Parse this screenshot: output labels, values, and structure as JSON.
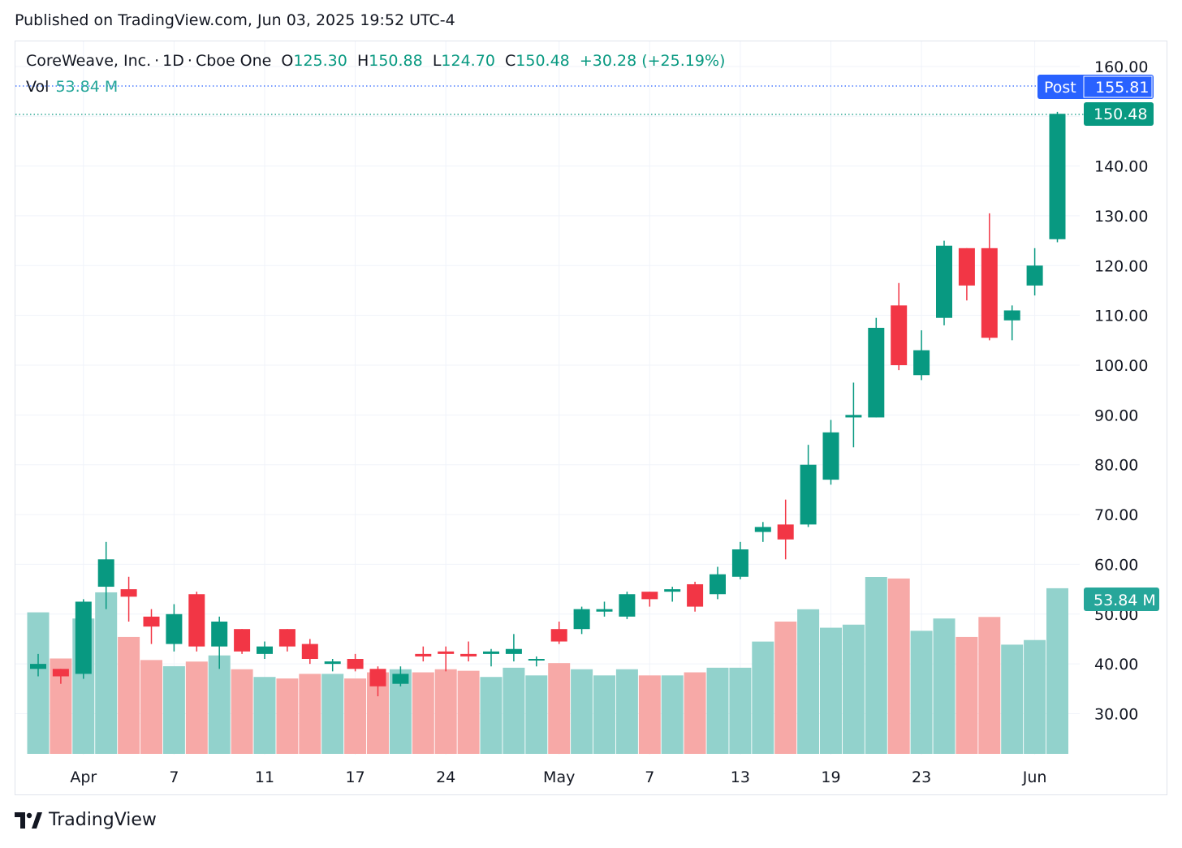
{
  "published": "Published on TradingView.com, Jun 03, 2025 19:52 UTC-4",
  "legend": {
    "symbol": "CoreWeave, Inc.",
    "interval": "1D",
    "exchange": "Cboe One",
    "open_label": "O",
    "open": "125.30",
    "high_label": "H",
    "high": "150.88",
    "low_label": "L",
    "low": "124.70",
    "close_label": "C",
    "close": "150.48",
    "change": "+30.28 (+25.19%)",
    "vol_label": "Vol",
    "vol_value": "53.84 M"
  },
  "tags": {
    "post_label": "Post",
    "post_price": "155.81",
    "last_price": "150.48",
    "volume_value": "53.84 M"
  },
  "footer": {
    "brand": "TradingView"
  },
  "colors": {
    "up": "#089981",
    "down": "#f23645",
    "vol_up": "#92d2cc",
    "vol_down": "#f7a9a7",
    "post": "#2962ff"
  },
  "chart_data": {
    "type": "candlestick",
    "y_axis": {
      "ticks": [
        30,
        40,
        50,
        60,
        70,
        80,
        90,
        100,
        110,
        120,
        130,
        140,
        160
      ],
      "tick_labels": [
        "30.00",
        "40.00",
        "50.00",
        "60.00",
        "70.00",
        "80.00",
        "90.00",
        "100.00",
        "110.00",
        "120.00",
        "130.00",
        "140.00",
        "160.00"
      ],
      "range": [
        22,
        163
      ]
    },
    "x_axis": {
      "tick_labels": [
        {
          "label": "Apr",
          "index": 2
        },
        {
          "label": "7",
          "index": 6
        },
        {
          "label": "11",
          "index": 10
        },
        {
          "label": "17",
          "index": 14
        },
        {
          "label": "24",
          "index": 18
        },
        {
          "label": "May",
          "index": 23
        },
        {
          "label": "7",
          "index": 27
        },
        {
          "label": "13",
          "index": 31
        },
        {
          "label": "19",
          "index": 35
        },
        {
          "label": "23",
          "index": 39
        },
        {
          "label": "Jun",
          "index": 44
        }
      ]
    },
    "volume_scale_max": 57.5,
    "candles": [
      {
        "o": 39.0,
        "h": 42.0,
        "l": 37.5,
        "c": 40.0,
        "v": 46
      },
      {
        "o": 39.0,
        "h": 39.0,
        "l": 36.0,
        "c": 37.5,
        "v": 31
      },
      {
        "o": 38.0,
        "h": 53.0,
        "l": 37.0,
        "c": 52.5,
        "v": 44
      },
      {
        "o": 55.5,
        "h": 64.5,
        "l": 51.0,
        "c": 61.0,
        "v": 52.5
      },
      {
        "o": 55.0,
        "h": 57.5,
        "l": 48.5,
        "c": 53.5,
        "v": 38
      },
      {
        "o": 49.5,
        "h": 51.0,
        "l": 44.0,
        "c": 47.5,
        "v": 30.5
      },
      {
        "o": 44.0,
        "h": 52.0,
        "l": 42.5,
        "c": 50.0,
        "v": 28.5
      },
      {
        "o": 54.0,
        "h": 54.5,
        "l": 42.5,
        "c": 43.5,
        "v": 30
      },
      {
        "o": 43.5,
        "h": 49.5,
        "l": 39.0,
        "c": 48.5,
        "v": 32
      },
      {
        "o": 47.0,
        "h": 47.0,
        "l": 42.0,
        "c": 42.5,
        "v": 27.5
      },
      {
        "o": 42.0,
        "h": 44.5,
        "l": 41.0,
        "c": 43.5,
        "v": 25
      },
      {
        "o": 47.0,
        "h": 47.0,
        "l": 42.5,
        "c": 43.5,
        "v": 24.5
      },
      {
        "o": 44.0,
        "h": 45.0,
        "l": 40.0,
        "c": 41.0,
        "v": 26
      },
      {
        "o": 40.0,
        "h": 41.0,
        "l": 38.5,
        "c": 40.5,
        "v": 26
      },
      {
        "o": 41.0,
        "h": 42.0,
        "l": 38.5,
        "c": 39.0,
        "v": 24.5
      },
      {
        "o": 39.0,
        "h": 39.5,
        "l": 33.5,
        "c": 35.5,
        "v": 26.5
      },
      {
        "o": 36.0,
        "h": 39.5,
        "l": 35.5,
        "c": 38.0,
        "v": 27.5
      },
      {
        "o": 42.0,
        "h": 43.5,
        "l": 40.5,
        "c": 41.5,
        "v": 26.5
      },
      {
        "o": 42.5,
        "h": 43.5,
        "l": 38.5,
        "c": 42.0,
        "v": 27.5
      },
      {
        "o": 42.0,
        "h": 44.5,
        "l": 40.5,
        "c": 41.5,
        "v": 27
      },
      {
        "o": 42.0,
        "h": 43.0,
        "l": 39.5,
        "c": 42.5,
        "v": 25
      },
      {
        "o": 42.0,
        "h": 46.0,
        "l": 40.5,
        "c": 43.0,
        "v": 28
      },
      {
        "o": 41.0,
        "h": 41.5,
        "l": 39.5,
        "c": 41.0,
        "v": 25.5
      },
      {
        "o": 47.0,
        "h": 48.5,
        "l": 44.0,
        "c": 44.5,
        "v": 29.5
      },
      {
        "o": 47.0,
        "h": 51.5,
        "l": 46.0,
        "c": 51.0,
        "v": 27.5
      },
      {
        "o": 50.5,
        "h": 52.5,
        "l": 49.5,
        "c": 51.0,
        "v": 25.5
      },
      {
        "o": 49.5,
        "h": 54.5,
        "l": 49.0,
        "c": 54.0,
        "v": 27.5
      },
      {
        "o": 54.5,
        "h": 54.5,
        "l": 51.5,
        "c": 53.0,
        "v": 25.5
      },
      {
        "o": 54.5,
        "h": 55.5,
        "l": 52.5,
        "c": 55.0,
        "v": 25.5
      },
      {
        "o": 56.0,
        "h": 56.5,
        "l": 50.5,
        "c": 51.5,
        "v": 26.5
      },
      {
        "o": 54.0,
        "h": 59.5,
        "l": 53.0,
        "c": 58.0,
        "v": 28
      },
      {
        "o": 57.5,
        "h": 64.5,
        "l": 57.0,
        "c": 63.0,
        "v": 28
      },
      {
        "o": 66.5,
        "h": 68.5,
        "l": 64.5,
        "c": 67.5,
        "v": 36.5
      },
      {
        "o": 68.0,
        "h": 73.0,
        "l": 61.0,
        "c": 65.0,
        "v": 43
      },
      {
        "o": 68.0,
        "h": 84.0,
        "l": 67.5,
        "c": 80.0,
        "v": 47
      },
      {
        "o": 77.0,
        "h": 89.0,
        "l": 76.0,
        "c": 86.5,
        "v": 41
      },
      {
        "o": 89.5,
        "h": 96.5,
        "l": 83.5,
        "c": 90.0,
        "v": 42
      },
      {
        "o": 89.5,
        "h": 109.5,
        "l": 89.5,
        "c": 107.5,
        "v": 57.5
      },
      {
        "o": 112.0,
        "h": 116.5,
        "l": 99.0,
        "c": 100.0,
        "v": 57
      },
      {
        "o": 98.0,
        "h": 107.0,
        "l": 97.0,
        "c": 103.0,
        "v": 40
      },
      {
        "o": 109.5,
        "h": 125.0,
        "l": 108.0,
        "c": 124.0,
        "v": 44
      },
      {
        "o": 123.5,
        "h": 123.5,
        "l": 113.0,
        "c": 116.0,
        "v": 38
      },
      {
        "o": 123.5,
        "h": 130.5,
        "l": 105.0,
        "c": 105.5,
        "v": 44.5
      },
      {
        "o": 109.0,
        "h": 112.0,
        "l": 105.0,
        "c": 111.0,
        "v": 35.5
      },
      {
        "o": 116.0,
        "h": 123.5,
        "l": 114.0,
        "c": 120.0,
        "v": 37
      },
      {
        "o": 125.3,
        "h": 150.88,
        "l": 124.7,
        "c": 150.48,
        "v": 53.84
      }
    ]
  }
}
